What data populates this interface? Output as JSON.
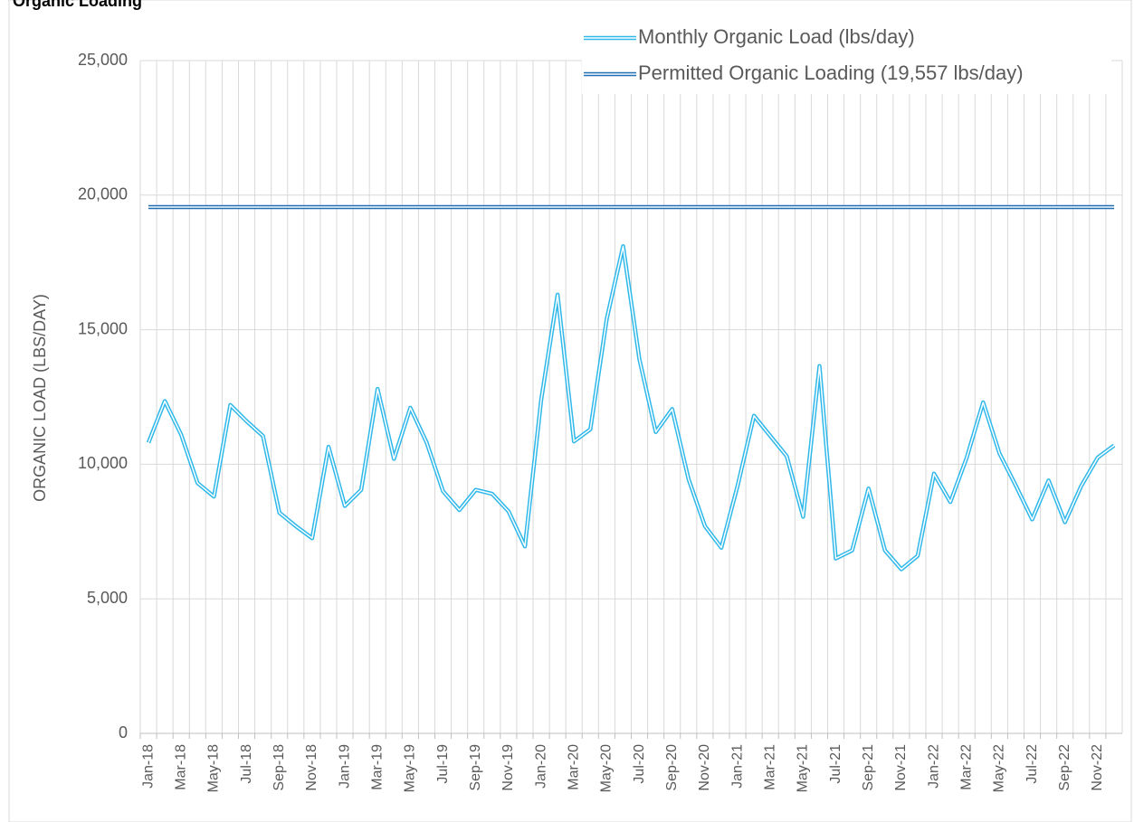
{
  "chart_data": {
    "type": "line",
    "title": "Organic Loading",
    "y_label": "ORGANIC LOAD (LBS/DAY)",
    "categories": [
      "Jan-18",
      null,
      "Mar-18",
      null,
      "May-18",
      null,
      "Jul-18",
      null,
      "Sep-18",
      null,
      "Nov-18",
      null,
      "Jan-19",
      null,
      "Mar-19",
      null,
      "May-19",
      null,
      "Jul-19",
      null,
      "Sep-19",
      null,
      "Nov-19",
      null,
      "Jan-20",
      null,
      "Mar-20",
      null,
      "May-20",
      null,
      "Jul-20",
      null,
      "Sep-20",
      null,
      "Nov-20",
      null,
      "Jan-21",
      null,
      "Mar-21",
      null,
      "May-21",
      null,
      "Jul-21",
      null,
      "Sep-21",
      null,
      "Nov-21",
      null,
      "Jan-22",
      null,
      "Mar-22",
      null,
      "May-22",
      null,
      "Jul-22",
      null,
      "Sep-22",
      null,
      "Nov-22",
      null
    ],
    "series": [
      {
        "name": "Monthly Organic Load (lbs/day)",
        "color": "#2fb8ea",
        "values": [
          10800,
          12350,
          11100,
          9300,
          8800,
          12200,
          11600,
          11050,
          8200,
          7700,
          7250,
          10650,
          8450,
          9050,
          12800,
          10200,
          12100,
          10800,
          9000,
          8300,
          9050,
          8900,
          8250,
          6950,
          12400,
          16300,
          10850,
          11300,
          15400,
          18100,
          13900,
          11200,
          12050,
          9450,
          7700,
          6900,
          9200,
          11800,
          11050,
          10300,
          8050,
          13650,
          6500,
          6800,
          9100,
          6800,
          6100,
          6600,
          9650,
          8600,
          10250,
          12300,
          10400,
          9200,
          7950,
          9400,
          7850,
          9200,
          10250,
          10700
        ]
      },
      {
        "name": "Permitted Organic Loading (19,557 lbs/day)",
        "color": "#1f6fb5",
        "values": [
          19557,
          19557,
          19557,
          19557,
          19557,
          19557,
          19557,
          19557,
          19557,
          19557,
          19557,
          19557,
          19557,
          19557,
          19557,
          19557,
          19557,
          19557,
          19557,
          19557,
          19557,
          19557,
          19557,
          19557,
          19557,
          19557,
          19557,
          19557,
          19557,
          19557,
          19557,
          19557,
          19557,
          19557,
          19557,
          19557,
          19557,
          19557,
          19557,
          19557,
          19557,
          19557,
          19557,
          19557,
          19557,
          19557,
          19557,
          19557,
          19557,
          19557,
          19557,
          19557,
          19557,
          19557,
          19557,
          19557,
          19557,
          19557,
          19557,
          19557
        ]
      }
    ],
    "ylim": [
      0,
      25000
    ],
    "yticks": [
      0,
      {
        "value": 5000,
        "label": "5,000"
      },
      {
        "value": 10000,
        "label": "10,000"
      },
      {
        "value": 15000,
        "label": "15,000"
      },
      {
        "value": 20000,
        "label": "20,000"
      },
      {
        "value": 25000,
        "label": "25,000"
      }
    ],
    "grid": true,
    "legend": "upper right"
  }
}
